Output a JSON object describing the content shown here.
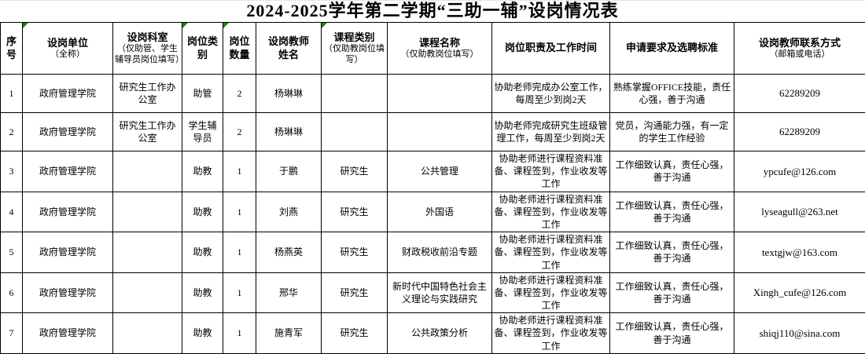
{
  "title": "2024-2025学年第二学期“三助一辅”设岗情况表",
  "colors": {
    "error_indicator_green": "#128712",
    "grid_border": "#000000",
    "text": "#000000",
    "background": "#ffffff"
  },
  "table": {
    "columns": [
      {
        "label": "序号",
        "sub": "",
        "error_indicator": false
      },
      {
        "label": "设岗单位",
        "sub": "（全称）",
        "error_indicator": true
      },
      {
        "label": "设岗科室",
        "sub": "（仅助管、学生辅导员岗位填写）",
        "error_indicator": false
      },
      {
        "label": "岗位类别",
        "sub": "",
        "error_indicator": true
      },
      {
        "label": "岗位数量",
        "sub": "",
        "error_indicator": true
      },
      {
        "label": "设岗教师姓名",
        "sub": "",
        "error_indicator": false
      },
      {
        "label": "课程类别",
        "sub": "（仅助教岗位填写）",
        "error_indicator": true
      },
      {
        "label": "课程名称",
        "sub": "（仅助教岗位填写）",
        "error_indicator": false
      },
      {
        "label": "岗位职责及工作时间",
        "sub": "",
        "error_indicator": false
      },
      {
        "label": "申请要求及选聘标准",
        "sub": "",
        "error_indicator": false
      },
      {
        "label": "设岗教师联系方式",
        "sub": "（邮箱或电话）",
        "error_indicator": false
      }
    ],
    "rows": [
      [
        "1",
        "政府管理学院",
        "研究生工作办公室",
        "助管",
        "2",
        "杨琳琳",
        "",
        "",
        "协助老师完成办公室工作，每周至少到岗2天",
        "熟练掌握OFFICE技能，责任心强，善于沟通",
        "62289209"
      ],
      [
        "2",
        "政府管理学院",
        "研究生工作办公室",
        "学生辅导员",
        "2",
        "杨琳琳",
        "",
        "",
        "协助老师完成研究生班级管理工作，每周至少到岗2天",
        "党员，沟通能力强，有一定的学生工作经验",
        "62289209"
      ],
      [
        "3",
        "政府管理学院",
        "",
        "助教",
        "1",
        "于鹏",
        "研究生",
        "公共管理",
        "协助老师进行课程资料准备、课程签到，作业收发等工作",
        "工作细致认真，责任心强，善于沟通",
        "ypcufe@126.com"
      ],
      [
        "4",
        "政府管理学院",
        "",
        "助教",
        "1",
        "刘燕",
        "研究生",
        "外国语",
        "协助老师进行课程资料准备、课程签到，作业收发等工作",
        "工作细致认真，责任心强，善于沟通",
        "lyseagull@263.net"
      ],
      [
        "5",
        "政府管理学院",
        "",
        "助教",
        "1",
        "杨燕英",
        "研究生",
        "财政税收前沿专题",
        "协助老师进行课程资料准备、课程签到，作业收发等工作",
        "工作细致认真，责任心强，善于沟通",
        "textgjw@163.com"
      ],
      [
        "6",
        "政府管理学院",
        "",
        "助教",
        "1",
        "邢华",
        "研究生",
        "新时代中国特色社会主义理论与实践研究",
        "协助老师进行课程资料准备、课程签到，作业收发等工作",
        "工作细致认真，责任心强，善于沟通",
        "Xingh_cufe@126.com"
      ],
      [
        "7",
        "政府管理学院",
        "",
        "助教",
        "1",
        "施青军",
        "研究生",
        "公共政策分析",
        "协助老师进行课程资料准备、课程签到，作业收发等工作",
        "工作细致认真，责任心强，善于沟通",
        "shiqj110@sina.com"
      ]
    ]
  }
}
